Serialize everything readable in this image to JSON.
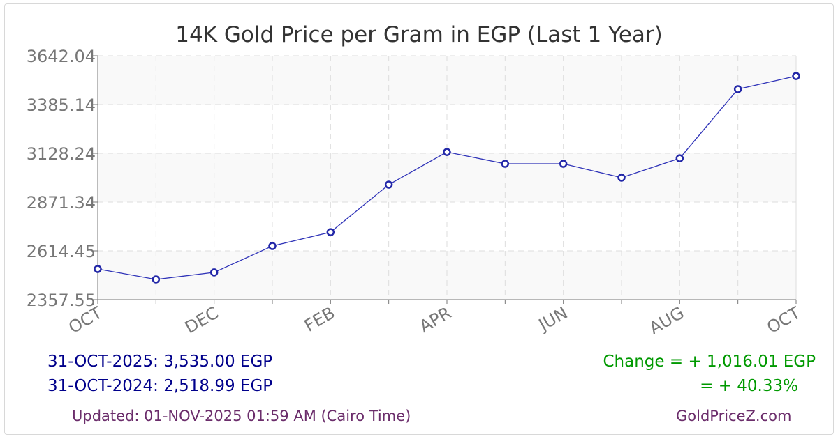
{
  "chart_data": {
    "type": "line",
    "title": "14K Gold Price per Gram in EGP (Last 1 Year)",
    "x_tick_labels": [
      "OCT",
      "DEC",
      "FEB",
      "APR",
      "JUN",
      "AUG",
      "OCT"
    ],
    "x": [
      "OCT-2024",
      "NOV-2024",
      "DEC-2024",
      "JAN-2025",
      "FEB-2025",
      "MAR-2025",
      "APR-2025",
      "MAY-2025",
      "JUN-2025",
      "JUL-2025",
      "AUG-2025",
      "SEP-2025",
      "OCT-2025"
    ],
    "values": [
      2518.99,
      2464,
      2501,
      2640,
      2713,
      2963,
      3135,
      3073,
      3073,
      3000,
      3102,
      3466,
      3535.0
    ],
    "y_ticks": [
      "2357.55",
      "2614.45",
      "2871.34",
      "3128.24",
      "3385.14",
      "3642.04"
    ],
    "ylim": [
      2357.55,
      3642.04
    ],
    "grid": true,
    "colors": {
      "line": "#2f33b8",
      "marker": "#2227a8",
      "band": "#f9f9f9",
      "grid": "#dddddd"
    }
  },
  "footer": {
    "current": "31-OCT-2025: 3,535.00 EGP",
    "previous": "31-OCT-2024: 2,518.99 EGP",
    "change_abs": "Change = + 1,016.01 EGP",
    "change_pct": "= + 40.33%",
    "updated": "Updated: 01-NOV-2025 01:59 AM (Cairo Time)",
    "site": "GoldPriceZ.com",
    "colors": {
      "price": "#00008b",
      "change": "#009900",
      "updated": "#6b2d6b"
    }
  }
}
